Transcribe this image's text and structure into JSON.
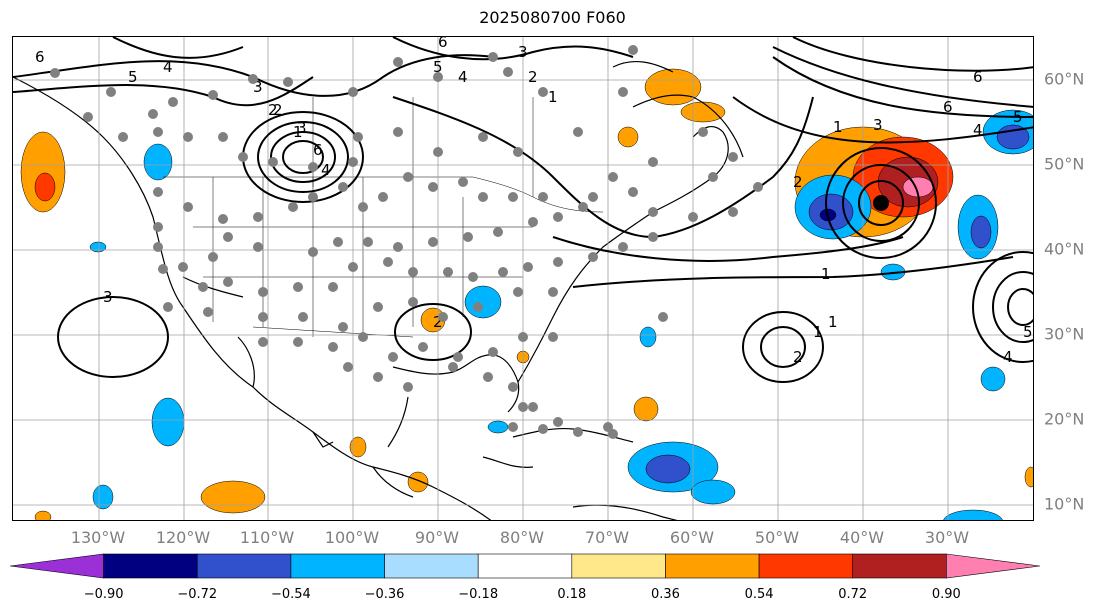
{
  "title": "2025080700 F060",
  "map": {
    "projection": "equirectangular",
    "extent_lon": [
      "130°W+",
      "30°W+"
    ],
    "gridlines": true,
    "coastlines_color": "#000000",
    "grid_color": "#a0a0a0",
    "contour_color": "#000000",
    "station_marker_color": "#808080",
    "highlight_marker_color": "#000000"
  },
  "axes": {
    "lon_labels": [
      "130°W",
      "120°W",
      "110°W",
      "100°W",
      "90°W",
      "80°W",
      "70°W",
      "60°W",
      "50°W",
      "40°W",
      "30°W"
    ],
    "lat_labels": [
      "60°N",
      "50°N",
      "40°N",
      "30°N",
      "20°N",
      "10°N"
    ]
  },
  "contour_labels": [
    "6",
    "5",
    "4",
    "3",
    "2",
    "1",
    "6",
    "5",
    "4",
    "3",
    "2",
    "1",
    "3",
    "6",
    "4",
    "2",
    "1",
    "2",
    "1",
    "3",
    "4",
    "5",
    "6",
    "1",
    "2",
    "1",
    "2",
    "3",
    "4",
    "5",
    "6"
  ],
  "colorbar": {
    "tick_labels": [
      "−0.90",
      "−0.72",
      "−0.54",
      "−0.36",
      "−0.18",
      "0.18",
      "0.36",
      "0.54",
      "0.72",
      "0.90"
    ],
    "colors": [
      "#9b30d8",
      "#000080",
      "#3050cc",
      "#00b4ff",
      "#a8ddff",
      "#ffffff",
      "#ffe88a",
      "#ffa000",
      "#ff3800",
      "#b02020",
      "#ff80b0"
    ]
  }
}
